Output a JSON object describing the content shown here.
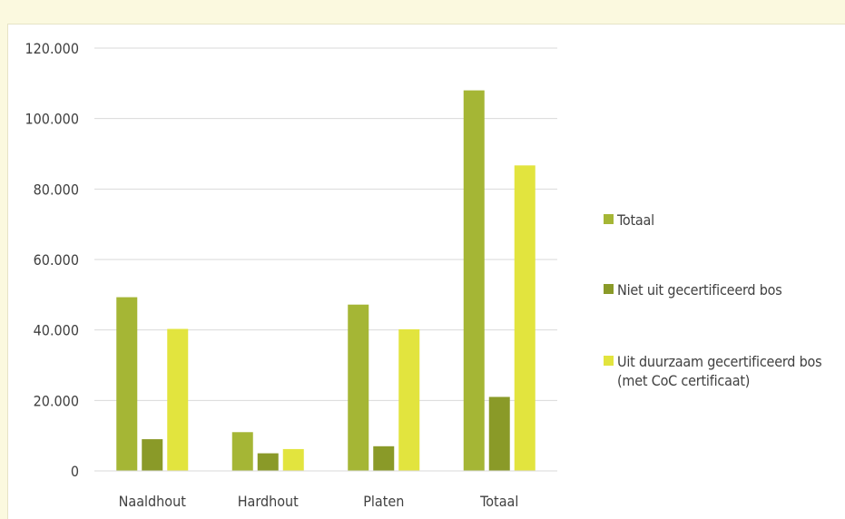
{
  "chart_data": {
    "type": "bar",
    "categories": [
      "Naaldhout",
      "Hardhout",
      "Platen",
      "Totaal"
    ],
    "series": [
      {
        "name": "Totaal",
        "color": "#a5b635",
        "values": [
          49300,
          11000,
          47200,
          108000
        ]
      },
      {
        "name": "Niet uit gecertificeerd bos",
        "color": "#8a9a28",
        "values": [
          9000,
          5000,
          7000,
          21000
        ]
      },
      {
        "name": "Uit duurzaam gecertificeerd bos\n(met CoC certificaat)",
        "color": "#e2e43e",
        "values": [
          40300,
          6200,
          40200,
          86700
        ]
      }
    ],
    "y_ticks": [
      "0",
      "20.000",
      "40.000",
      "60.000",
      "80.000",
      "100.000",
      "120.000"
    ],
    "ylim": [
      0,
      120000
    ],
    "grid": true,
    "legend": "right"
  }
}
